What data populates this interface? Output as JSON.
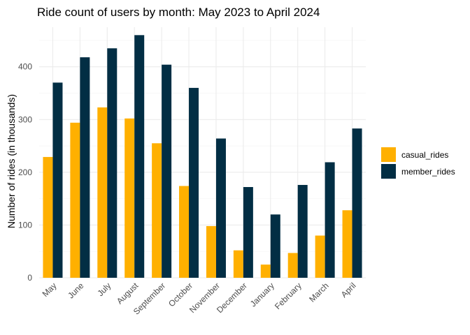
{
  "chart_data": {
    "type": "bar",
    "title": "Ride count of users by month: May 2023 to April 2024",
    "xlabel": "",
    "ylabel": "Number of rides (in thousands)",
    "ylim": [
      0,
      475
    ],
    "yticks": [
      0,
      100,
      200,
      300,
      400
    ],
    "grid": true,
    "legend_position": "right",
    "categories": [
      "May",
      "June",
      "July",
      "August",
      "September",
      "October",
      "November",
      "December",
      "January",
      "February",
      "March",
      "April"
    ],
    "series": [
      {
        "name": "casual_rides",
        "color": "#FFB000",
        "values": [
          229,
          294,
          323,
          302,
          255,
          174,
          98,
          52,
          25,
          47,
          80,
          128
        ]
      },
      {
        "name": "member_rides",
        "color": "#022E44",
        "values": [
          370,
          418,
          435,
          460,
          404,
          360,
          264,
          172,
          120,
          176,
          219,
          283
        ]
      }
    ]
  }
}
